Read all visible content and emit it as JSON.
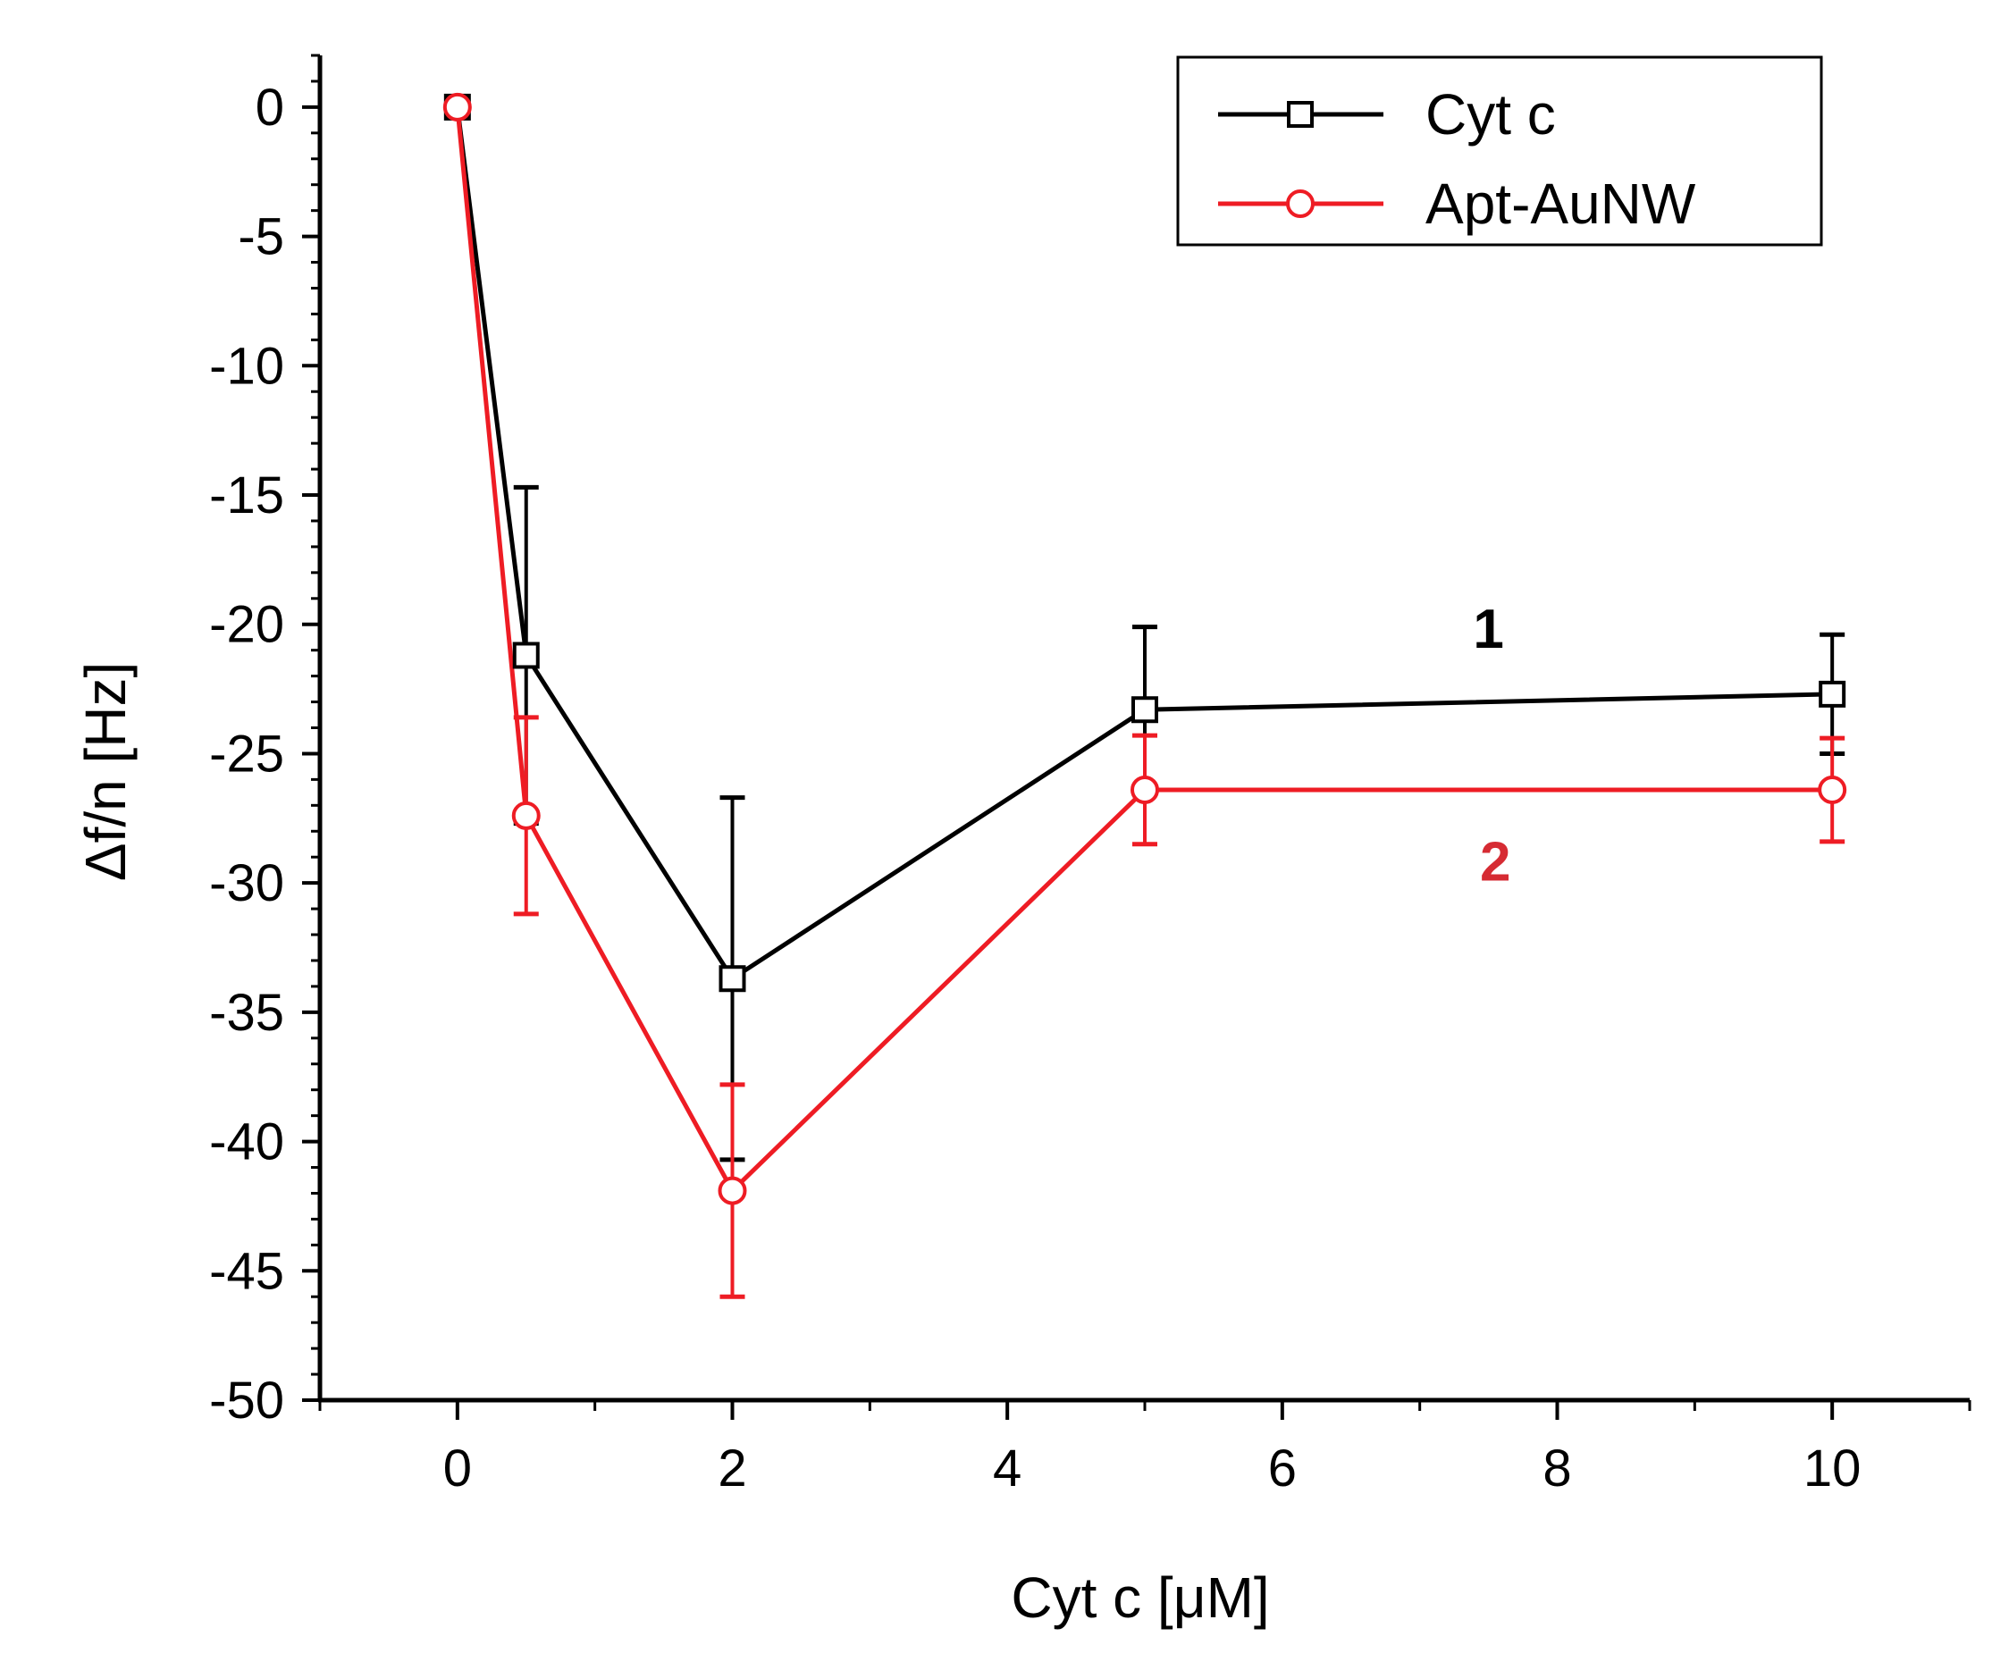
{
  "chart_data": {
    "type": "line",
    "title": "",
    "xlabel": "Cyt c [μM]",
    "ylabel": "Δf/n [Hz]",
    "xlim": [
      -1,
      11
    ],
    "ylim": [
      -50,
      2
    ],
    "x_major_ticks": [
      0,
      2,
      4,
      6,
      8,
      10
    ],
    "x_minor_ticks": [
      -1,
      1,
      3,
      5,
      7,
      9,
      11
    ],
    "y_major_ticks": [
      0,
      -5,
      -10,
      -15,
      -20,
      -25,
      -30,
      -35,
      -40,
      -45,
      -50
    ],
    "y_minor_step": 1,
    "grid": false,
    "legend_position": "top-right",
    "x": [
      0,
      0.5,
      2,
      5,
      10
    ],
    "series": [
      {
        "name": "Cyt c",
        "label": "1",
        "color": "#000000",
        "marker": "square",
        "values": [
          0,
          -21.2,
          -33.7,
          -23.3,
          -22.7
        ],
        "error": [
          0,
          6.5,
          7.0,
          3.2,
          2.3
        ]
      },
      {
        "name": "Apt-AuNW",
        "label": "2",
        "color": "#ee1c24",
        "marker": "circle",
        "values": [
          0,
          -27.4,
          -41.9,
          -26.4,
          -26.4
        ],
        "error": [
          0,
          3.8,
          4.1,
          2.1,
          2.0
        ]
      }
    ]
  }
}
